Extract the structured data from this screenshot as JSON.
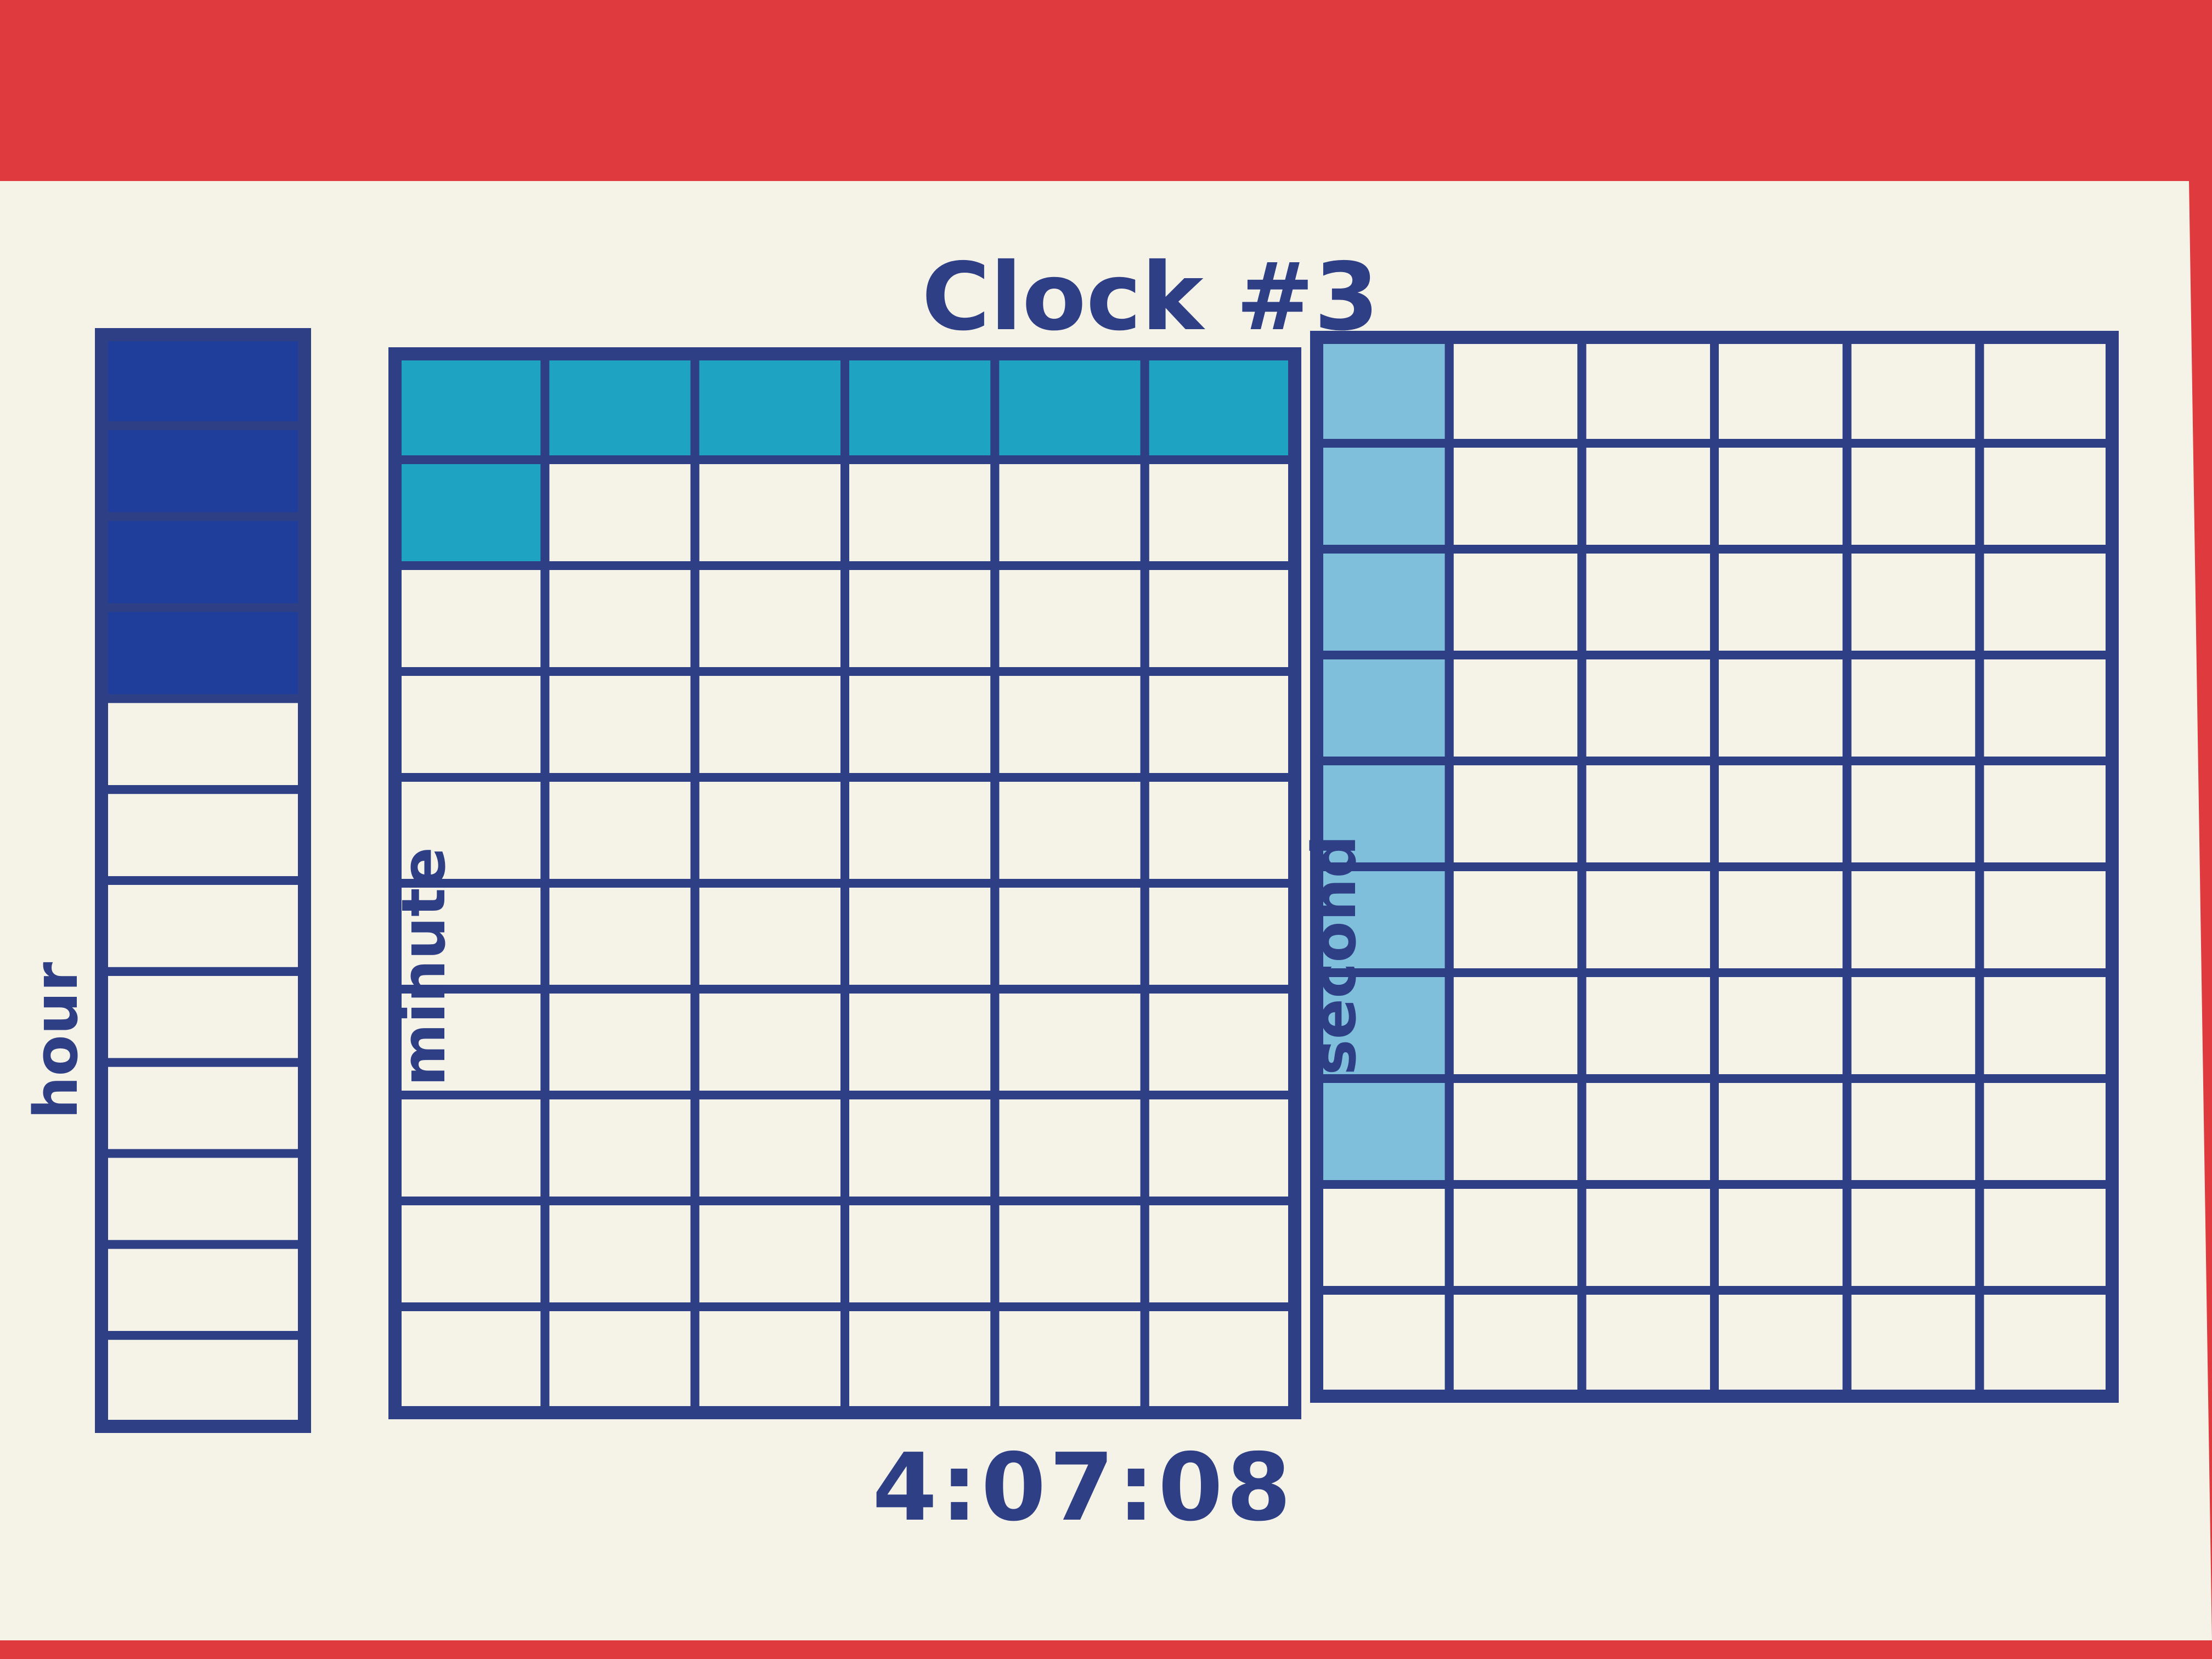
{
  "title": "Clock #3",
  "time_text": "4:07:08",
  "labels": {
    "hour": "hour",
    "minute": "minute",
    "second": "second"
  },
  "grids": {
    "hour": {
      "rows": 12,
      "cols": 1,
      "filled": 4
    },
    "minute": {
      "rows": 10,
      "cols": 6,
      "filled": 7
    },
    "second": {
      "rows": 10,
      "cols": 6,
      "filled": 8,
      "fill_order": "column"
    }
  },
  "colors": {
    "background": "#df3b3e",
    "paper": "#f5f2e8",
    "ink": "#2e3f86",
    "hour_fill": "#1f3d9a",
    "minute_fill": "#1ea3c2",
    "second_fill": "#7fbfdc"
  }
}
